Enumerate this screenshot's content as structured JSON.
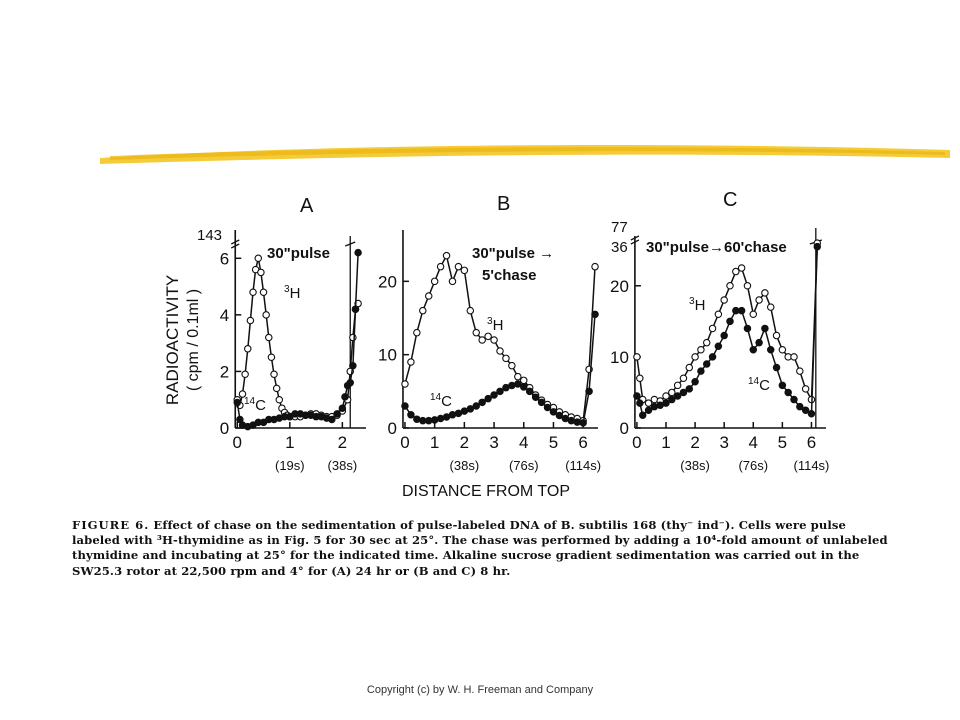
{
  "colors": {
    "highlight_stroke": "#f3c623",
    "ink": "#111111"
  },
  "figure": {
    "ylabel_line1": "RADIOACTIVITY",
    "ylabel_line2": "( cpm / 0.1ml )",
    "xlabel": "DISTANCE FROM TOP"
  },
  "chart_data": [
    {
      "type": "line",
      "panel": "A",
      "annotation": "30\"pulse",
      "break_tick": "143",
      "x_ticks": [
        "0",
        "1",
        "2"
      ],
      "y_ticks": [
        "0",
        "2",
        "4",
        "6"
      ],
      "secondary_x_ticks": [
        "(19s)",
        "(38s)"
      ],
      "xlim": [
        -0.1,
        2.45
      ],
      "ylim": [
        0,
        7
      ],
      "series": [
        {
          "name": "3H",
          "marker": "open",
          "x": [
            0.0,
            0.05,
            0.1,
            0.15,
            0.2,
            0.25,
            0.3,
            0.35,
            0.4,
            0.45,
            0.5,
            0.55,
            0.6,
            0.65,
            0.7,
            0.75,
            0.8,
            0.85,
            0.9,
            0.95,
            1.0,
            1.1,
            1.2,
            1.3,
            1.4,
            1.5,
            1.6,
            1.7,
            1.8,
            1.9,
            2.0,
            2.1,
            2.15,
            2.2,
            2.25,
            2.3
          ],
          "y": [
            1.0,
            0.8,
            1.2,
            1.9,
            2.8,
            3.8,
            4.8,
            5.6,
            6.0,
            5.5,
            4.8,
            4.0,
            3.2,
            2.5,
            1.9,
            1.4,
            1.0,
            0.7,
            0.55,
            0.45,
            0.4,
            0.4,
            0.4,
            0.45,
            0.5,
            0.5,
            0.45,
            0.4,
            0.4,
            0.45,
            0.6,
            1.0,
            2.0,
            3.2,
            4.2,
            4.4
          ]
        },
        {
          "name": "14C",
          "marker": "filled",
          "x": [
            0.0,
            0.05,
            0.1,
            0.2,
            0.3,
            0.4,
            0.5,
            0.6,
            0.7,
            0.8,
            0.9,
            1.0,
            1.1,
            1.2,
            1.3,
            1.4,
            1.5,
            1.6,
            1.7,
            1.8,
            1.9,
            2.0,
            2.05,
            2.1,
            2.15,
            2.2,
            2.25,
            2.3
          ],
          "y": [
            0.9,
            0.3,
            0.1,
            0.05,
            0.1,
            0.2,
            0.2,
            0.3,
            0.3,
            0.35,
            0.4,
            0.4,
            0.5,
            0.5,
            0.45,
            0.45,
            0.4,
            0.4,
            0.35,
            0.3,
            0.5,
            0.7,
            1.1,
            1.5,
            1.6,
            2.2,
            4.2,
            6.2
          ]
        }
      ]
    },
    {
      "type": "line",
      "panel": "B",
      "annotation_line1": "30\"pulse →",
      "annotation_line2": "5'chase",
      "x_ticks": [
        "0",
        "1",
        "2",
        "3",
        "4",
        "5",
        "6"
      ],
      "y_ticks": [
        "0",
        "10",
        "20"
      ],
      "secondary_x_ticks": [
        "(38s)",
        "(76s)",
        "(114s)"
      ],
      "xlim": [
        -0.1,
        6.5
      ],
      "ylim": [
        0,
        27
      ],
      "series": [
        {
          "name": "3H",
          "marker": "open",
          "x": [
            0.0,
            0.2,
            0.4,
            0.6,
            0.8,
            1.0,
            1.2,
            1.4,
            1.6,
            1.8,
            2.0,
            2.2,
            2.4,
            2.6,
            2.8,
            3.0,
            3.2,
            3.4,
            3.6,
            3.8,
            4.0,
            4.2,
            4.4,
            4.6,
            4.8,
            5.0,
            5.2,
            5.4,
            5.6,
            5.8,
            6.0,
            6.2,
            6.4
          ],
          "y": [
            6,
            9,
            13,
            16,
            18,
            20,
            22,
            23.5,
            20,
            22,
            21.5,
            16,
            13,
            12,
            12.5,
            12,
            10.5,
            9.5,
            8.5,
            7,
            6.5,
            5.5,
            4.5,
            3.8,
            3.2,
            2.8,
            2.2,
            1.8,
            1.5,
            1.3,
            1.0,
            8,
            22
          ]
        },
        {
          "name": "14C",
          "marker": "filled",
          "x": [
            0.0,
            0.2,
            0.4,
            0.6,
            0.8,
            1.0,
            1.2,
            1.4,
            1.6,
            1.8,
            2.0,
            2.2,
            2.4,
            2.6,
            2.8,
            3.0,
            3.2,
            3.4,
            3.6,
            3.8,
            4.0,
            4.2,
            4.4,
            4.6,
            4.8,
            5.0,
            5.2,
            5.4,
            5.6,
            5.8,
            6.0,
            6.2,
            6.4
          ],
          "y": [
            3,
            1.8,
            1.2,
            1.0,
            1.0,
            1.1,
            1.3,
            1.5,
            1.8,
            2.0,
            2.3,
            2.6,
            3.0,
            3.5,
            4.0,
            4.5,
            5.0,
            5.5,
            5.8,
            6.0,
            5.6,
            5.0,
            4.2,
            3.5,
            2.8,
            2.2,
            1.7,
            1.3,
            1.0,
            0.8,
            0.7,
            5,
            15.5
          ]
        }
      ]
    },
    {
      "type": "line",
      "panel": "C",
      "annotation": "30\"pulse→60'chase",
      "break_ticks": [
        "77",
        "36"
      ],
      "x_ticks": [
        "0",
        "1",
        "2",
        "3",
        "4",
        "5",
        "6"
      ],
      "y_ticks": [
        "0",
        "10",
        "20"
      ],
      "secondary_x_ticks": [
        "(38s)",
        "(76s)",
        "(114s)"
      ],
      "xlim": [
        -0.1,
        6.5
      ],
      "ylim": [
        0,
        27
      ],
      "series": [
        {
          "name": "3H",
          "marker": "open",
          "x": [
            0.0,
            0.1,
            0.2,
            0.4,
            0.6,
            0.8,
            1.0,
            1.2,
            1.4,
            1.6,
            1.8,
            2.0,
            2.2,
            2.4,
            2.6,
            2.8,
            3.0,
            3.2,
            3.4,
            3.6,
            3.8,
            4.0,
            4.2,
            4.4,
            4.6,
            4.8,
            5.0,
            5.2,
            5.4,
            5.6,
            5.8,
            6.0,
            6.2
          ],
          "y": [
            10,
            7,
            4,
            3.5,
            4,
            3.8,
            4.5,
            5,
            6,
            7,
            8.5,
            10,
            11,
            12,
            14,
            16,
            18,
            20,
            22,
            22.5,
            20,
            16,
            18,
            19,
            17,
            13,
            11,
            10,
            10,
            8,
            5.5,
            4,
            26
          ]
        },
        {
          "name": "14C",
          "marker": "filled",
          "x": [
            0.0,
            0.1,
            0.2,
            0.4,
            0.6,
            0.8,
            1.0,
            1.2,
            1.4,
            1.6,
            1.8,
            2.0,
            2.2,
            2.4,
            2.6,
            2.8,
            3.0,
            3.2,
            3.4,
            3.6,
            3.8,
            4.0,
            4.2,
            4.4,
            4.6,
            4.8,
            5.0,
            5.2,
            5.4,
            5.6,
            5.8,
            6.0,
            6.2
          ],
          "y": [
            4.5,
            3.5,
            1.8,
            2.5,
            3,
            3.2,
            3.5,
            4,
            4.5,
            5,
            5.5,
            6.5,
            8,
            9,
            10,
            11.5,
            13,
            15,
            16.5,
            16.5,
            14,
            11,
            12,
            14,
            11,
            8.5,
            6,
            5,
            4,
            3,
            2.5,
            2,
            25.5
          ]
        }
      ]
    }
  ],
  "caption": {
    "figure_label": "FIGURE 6.",
    "line1": "Effect of chase on the sedimentation of pulse-labeled DNA of B. subtilis 168 (thy⁻ ind⁻). Cells were pulse",
    "line2": "labeled with ³H-thymidine as in Fig. 5 for 30 sec at 25°. The chase was performed by adding a 10⁴-fold amount of unlabeled",
    "line3": "thymidine and incubating at 25° for the indicated time. Alkaline sucrose gradient sedimentation was carried out in the",
    "line4": "SW25.3 rotor at 22,500 rpm and 4° for (A) 24 hr or (B and C) 8 hr."
  },
  "footer": {
    "copyright": "Copyright (c) by W. H. Freeman and Company"
  }
}
